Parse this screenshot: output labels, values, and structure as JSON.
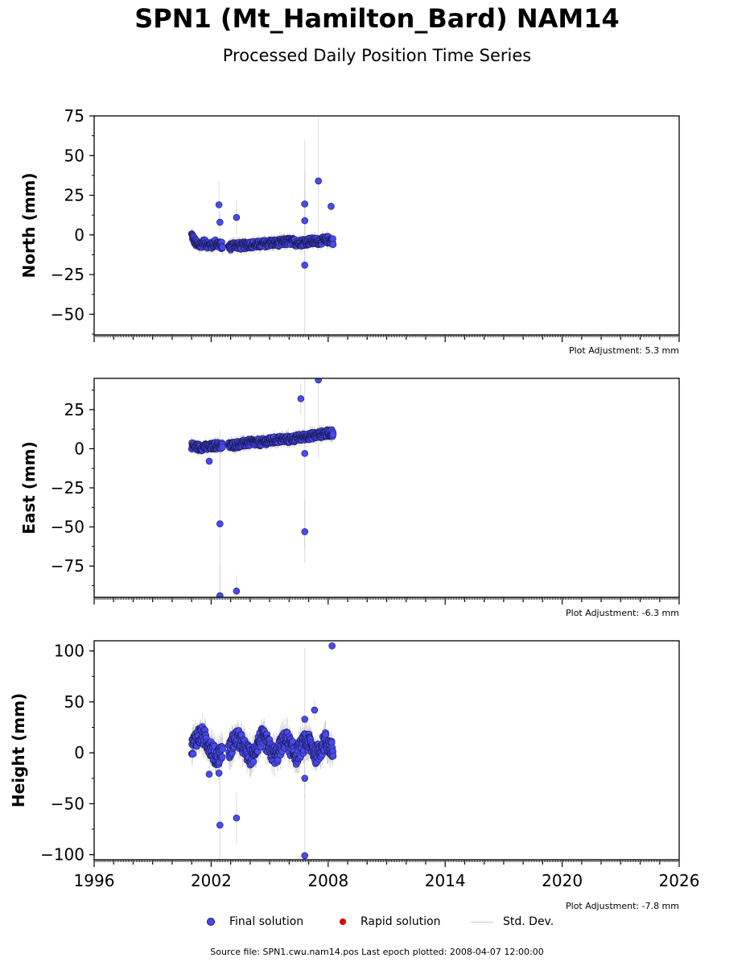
{
  "header": {
    "title": "SPN1 (Mt_Hamilton_Bard) NAM14",
    "subtitle": "Processed Daily Position Time Series"
  },
  "adjustments": {
    "north": "Plot Adjustment: 5.3 mm",
    "east": "Plot Adjustment: -6.3 mm",
    "height": "Plot Adjustment: -7.8 mm"
  },
  "legend": {
    "final": "Final solution",
    "rapid": "Rapid solution",
    "std": "Std. Dev."
  },
  "footer": {
    "source": "Source file: SPN1.cwu.nam14.pos  Last epoch plotted: 2008-04-07 12:00:00"
  },
  "colors": {
    "final": "#4a4af0",
    "rapid": "#dd0000",
    "std": "#cccccc"
  },
  "chart_data": [
    {
      "type": "scatter",
      "panel": "north",
      "ylabel": "North (mm)",
      "xlim": [
        1996,
        2026
      ],
      "ylim": [
        -63,
        75
      ],
      "yticks": [
        -50,
        -25,
        0,
        25,
        50,
        75
      ],
      "outliers": [
        [
          2002.4,
          19,
          15
        ],
        [
          2002.45,
          8,
          6
        ],
        [
          2003.3,
          11,
          11
        ],
        [
          2006.8,
          19.5,
          40
        ],
        [
          2006.8,
          9,
          30
        ],
        [
          2006.8,
          -19,
          45
        ],
        [
          2007.5,
          34,
          40
        ],
        [
          2008.15,
          18,
          3
        ]
      ],
      "series_segments": [
        {
          "x": [
            2001.0,
            2001.2,
            2001.4,
            2001.6,
            2001.8,
            2002.0,
            2002.2,
            2002.4,
            2002.6
          ],
          "y": [
            0,
            -5,
            -7,
            -5,
            -6,
            -7,
            -5,
            -6,
            -7
          ]
        },
        {
          "x": [
            2002.9,
            2003.2,
            2003.5,
            2004.0,
            2004.5,
            2005.0,
            2005.5,
            2006.0,
            2006.5,
            2007.0,
            2007.5,
            2008.0,
            2008.27
          ],
          "y": [
            -8,
            -6,
            -7,
            -6,
            -6,
            -5,
            -5,
            -4,
            -5,
            -4,
            -4,
            -3,
            -4
          ]
        }
      ]
    },
    {
      "type": "scatter",
      "panel": "east",
      "ylabel": "East (mm)",
      "xlim": [
        1996,
        2026
      ],
      "ylim": [
        -95,
        45
      ],
      "yticks": [
        -75,
        -50,
        -25,
        0,
        25
      ],
      "outliers": [
        [
          2001.9,
          -8,
          5
        ],
        [
          2002.45,
          -48,
          60
        ],
        [
          2002.45,
          -94,
          20
        ],
        [
          2003.3,
          -91,
          10
        ],
        [
          2006.6,
          32,
          10
        ],
        [
          2006.8,
          -53,
          20
        ],
        [
          2006.8,
          -3,
          60
        ],
        [
          2007.5,
          44,
          50
        ]
      ],
      "series_segments": [
        {
          "x": [
            2001.0,
            2001.3,
            2001.6,
            2001.9,
            2002.2,
            2002.5,
            2002.6
          ],
          "y": [
            2,
            1,
            1,
            1,
            2,
            2,
            2
          ]
        },
        {
          "x": [
            2002.9,
            2003.5,
            2004.0,
            2004.5,
            2005.0,
            2005.5,
            2006.0,
            2006.5,
            2007.0,
            2007.5,
            2008.0,
            2008.27
          ],
          "y": [
            2,
            3,
            4,
            4,
            5,
            6,
            6,
            7,
            8,
            9,
            10,
            10
          ]
        }
      ]
    },
    {
      "type": "scatter",
      "panel": "height",
      "ylabel": "Height (mm)",
      "xlim": [
        1996,
        2026
      ],
      "ylim": [
        -105,
        110
      ],
      "yticks": [
        -100,
        -50,
        0,
        50,
        100
      ],
      "xticks": [
        1996,
        2002,
        2008,
        2014,
        2020,
        2026
      ],
      "xticklabels": [
        "1996",
        "2002",
        "2008",
        "2014",
        "2020",
        "2026"
      ],
      "outliers": [
        [
          2002.45,
          -71,
          50
        ],
        [
          2003.3,
          -64,
          25
        ],
        [
          2006.8,
          -101,
          60
        ],
        [
          2006.8,
          33,
          70
        ],
        [
          2006.8,
          -25,
          20
        ],
        [
          2007.3,
          42,
          10
        ],
        [
          2008.2,
          105,
          5
        ],
        [
          2002.4,
          -20,
          10
        ],
        [
          2001.9,
          -21,
          8
        ]
      ],
      "series_segments": [
        {
          "x": [
            2001.0,
            2001.25,
            2001.5,
            2001.75,
            2002.0,
            2002.25,
            2002.5,
            2002.6
          ],
          "y": [
            5,
            15,
            18,
            12,
            5,
            -5,
            0,
            5
          ]
        },
        {
          "x": [
            2002.9,
            2003.1,
            2003.35,
            2003.6,
            2003.85,
            2004.1,
            2004.35,
            2004.6,
            2004.85,
            2005.1,
            2005.35,
            2005.6,
            2005.85,
            2006.1,
            2006.35,
            2006.6,
            2006.85,
            2007.1,
            2007.35,
            2007.6,
            2007.85,
            2008.1,
            2008.27
          ],
          "y": [
            0,
            10,
            15,
            8,
            0,
            -5,
            8,
            15,
            10,
            0,
            -3,
            8,
            14,
            5,
            -3,
            5,
            12,
            8,
            -2,
            3,
            12,
            5,
            0
          ]
        }
      ]
    }
  ]
}
